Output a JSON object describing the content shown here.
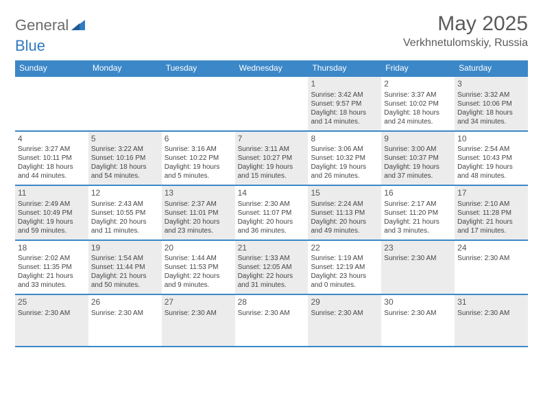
{
  "logo": {
    "text_gray": "General",
    "text_blue": "Blue"
  },
  "title": {
    "month": "May 2025",
    "location": "Verkhnetulomskiy, Russia"
  },
  "colors": {
    "header_bg": "#3b87c8",
    "header_text": "#ffffff",
    "shaded_cell": "#ececec",
    "border": "#3b87c8",
    "logo_gray": "#6b6b6b",
    "logo_blue": "#2f7ac0"
  },
  "weekdays": [
    "Sunday",
    "Monday",
    "Tuesday",
    "Wednesday",
    "Thursday",
    "Friday",
    "Saturday"
  ],
  "weeks": [
    [
      {
        "day": "",
        "lines": []
      },
      {
        "day": "",
        "lines": []
      },
      {
        "day": "",
        "lines": []
      },
      {
        "day": "",
        "lines": []
      },
      {
        "day": "1",
        "lines": [
          "Sunrise: 3:42 AM",
          "Sunset: 9:57 PM",
          "Daylight: 18 hours and 14 minutes."
        ]
      },
      {
        "day": "2",
        "lines": [
          "Sunrise: 3:37 AM",
          "Sunset: 10:02 PM",
          "Daylight: 18 hours and 24 minutes."
        ]
      },
      {
        "day": "3",
        "lines": [
          "Sunrise: 3:32 AM",
          "Sunset: 10:06 PM",
          "Daylight: 18 hours and 34 minutes."
        ]
      }
    ],
    [
      {
        "day": "4",
        "lines": [
          "Sunrise: 3:27 AM",
          "Sunset: 10:11 PM",
          "Daylight: 18 hours and 44 minutes."
        ]
      },
      {
        "day": "5",
        "lines": [
          "Sunrise: 3:22 AM",
          "Sunset: 10:16 PM",
          "Daylight: 18 hours and 54 minutes."
        ]
      },
      {
        "day": "6",
        "lines": [
          "Sunrise: 3:16 AM",
          "Sunset: 10:22 PM",
          "Daylight: 19 hours and 5 minutes."
        ]
      },
      {
        "day": "7",
        "lines": [
          "Sunrise: 3:11 AM",
          "Sunset: 10:27 PM",
          "Daylight: 19 hours and 15 minutes."
        ]
      },
      {
        "day": "8",
        "lines": [
          "Sunrise: 3:06 AM",
          "Sunset: 10:32 PM",
          "Daylight: 19 hours and 26 minutes."
        ]
      },
      {
        "day": "9",
        "lines": [
          "Sunrise: 3:00 AM",
          "Sunset: 10:37 PM",
          "Daylight: 19 hours and 37 minutes."
        ]
      },
      {
        "day": "10",
        "lines": [
          "Sunrise: 2:54 AM",
          "Sunset: 10:43 PM",
          "Daylight: 19 hours and 48 minutes."
        ]
      }
    ],
    [
      {
        "day": "11",
        "lines": [
          "Sunrise: 2:49 AM",
          "Sunset: 10:49 PM",
          "Daylight: 19 hours and 59 minutes."
        ]
      },
      {
        "day": "12",
        "lines": [
          "Sunrise: 2:43 AM",
          "Sunset: 10:55 PM",
          "Daylight: 20 hours and 11 minutes."
        ]
      },
      {
        "day": "13",
        "lines": [
          "Sunrise: 2:37 AM",
          "Sunset: 11:01 PM",
          "Daylight: 20 hours and 23 minutes."
        ]
      },
      {
        "day": "14",
        "lines": [
          "Sunrise: 2:30 AM",
          "Sunset: 11:07 PM",
          "Daylight: 20 hours and 36 minutes."
        ]
      },
      {
        "day": "15",
        "lines": [
          "Sunrise: 2:24 AM",
          "Sunset: 11:13 PM",
          "Daylight: 20 hours and 49 minutes."
        ]
      },
      {
        "day": "16",
        "lines": [
          "Sunrise: 2:17 AM",
          "Sunset: 11:20 PM",
          "Daylight: 21 hours and 3 minutes."
        ]
      },
      {
        "day": "17",
        "lines": [
          "Sunrise: 2:10 AM",
          "Sunset: 11:28 PM",
          "Daylight: 21 hours and 17 minutes."
        ]
      }
    ],
    [
      {
        "day": "18",
        "lines": [
          "Sunrise: 2:02 AM",
          "Sunset: 11:35 PM",
          "Daylight: 21 hours and 33 minutes."
        ]
      },
      {
        "day": "19",
        "lines": [
          "Sunrise: 1:54 AM",
          "Sunset: 11:44 PM",
          "Daylight: 21 hours and 50 minutes."
        ]
      },
      {
        "day": "20",
        "lines": [
          "Sunrise: 1:44 AM",
          "Sunset: 11:53 PM",
          "Daylight: 22 hours and 9 minutes."
        ]
      },
      {
        "day": "21",
        "lines": [
          "Sunrise: 1:33 AM",
          "Sunset: 12:05 AM",
          "Daylight: 22 hours and 31 minutes."
        ]
      },
      {
        "day": "22",
        "lines": [
          "Sunrise: 1:19 AM",
          "Sunset: 12:19 AM",
          "Daylight: 23 hours and 0 minutes."
        ]
      },
      {
        "day": "23",
        "lines": [
          "Sunrise: 2:30 AM"
        ]
      },
      {
        "day": "24",
        "lines": [
          "Sunrise: 2:30 AM"
        ]
      }
    ],
    [
      {
        "day": "25",
        "lines": [
          "Sunrise: 2:30 AM"
        ]
      },
      {
        "day": "26",
        "lines": [
          "Sunrise: 2:30 AM"
        ]
      },
      {
        "day": "27",
        "lines": [
          "Sunrise: 2:30 AM"
        ]
      },
      {
        "day": "28",
        "lines": [
          "Sunrise: 2:30 AM"
        ]
      },
      {
        "day": "29",
        "lines": [
          "Sunrise: 2:30 AM"
        ]
      },
      {
        "day": "30",
        "lines": [
          "Sunrise: 2:30 AM"
        ]
      },
      {
        "day": "31",
        "lines": [
          "Sunrise: 2:30 AM"
        ]
      }
    ]
  ]
}
